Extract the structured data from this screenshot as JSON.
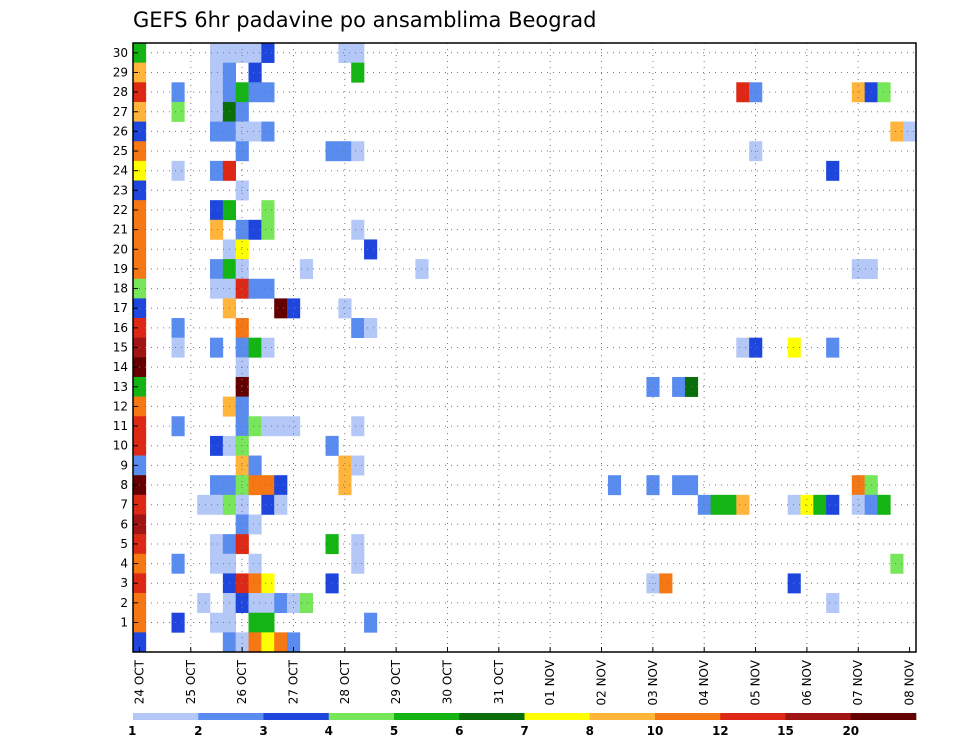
{
  "chart_data": {
    "type": "heatmap",
    "title": "GEFS 6hr padavine po ansamblima Beograd",
    "x_ticks": [
      "24 OCT",
      "25 OCT",
      "26 OCT",
      "27 OCT",
      "28 OCT",
      "29 OCT",
      "30 OCT",
      "31 OCT",
      "01 NOV",
      "02 NOV",
      "03 NOV",
      "04 NOV",
      "05 NOV",
      "06 NOV",
      "07 NOV",
      "08 NOV"
    ],
    "x_start": "2018-10-24T00:00",
    "step_hours": 6,
    "steps": 61,
    "y_ticks": [
      "1",
      "2",
      "3",
      "4",
      "5",
      "6",
      "7",
      "8",
      "9",
      "10",
      "11",
      "12",
      "13",
      "14",
      "15",
      "16",
      "17",
      "18",
      "19",
      "20",
      "21",
      "22",
      "23",
      "24",
      "25",
      "26",
      "27",
      "28",
      "29",
      "30"
    ],
    "grid": "dotted",
    "colorbar": {
      "labels": [
        "1",
        "2",
        "3",
        "4",
        "5",
        "6",
        "7",
        "8",
        "10",
        "12",
        "15",
        "20"
      ],
      "colors": [
        "#b4c8f8",
        "#5a8cf0",
        "#1e46dc",
        "#78e65a",
        "#14b414",
        "#0a6e0a",
        "#ffff00",
        "#ffb43c",
        "#f57814",
        "#dc2814",
        "#a01414",
        "#640000"
      ]
    },
    "cells": [
      [
        0,
        30,
        5
      ],
      [
        0,
        29,
        8
      ],
      [
        0,
        28,
        10
      ],
      [
        0,
        27,
        8
      ],
      [
        0,
        26,
        3
      ],
      [
        0,
        25,
        9
      ],
      [
        0,
        24,
        7
      ],
      [
        0,
        23,
        3
      ],
      [
        0,
        22,
        9
      ],
      [
        0,
        21,
        9
      ],
      [
        0,
        20,
        9
      ],
      [
        0,
        19,
        9
      ],
      [
        0,
        18,
        4
      ],
      [
        0,
        17,
        3
      ],
      [
        0,
        16,
        10
      ],
      [
        0,
        15,
        11
      ],
      [
        0,
        14,
        12
      ],
      [
        0,
        13,
        5
      ],
      [
        0,
        12,
        9
      ],
      [
        0,
        11,
        10
      ],
      [
        0,
        10,
        10
      ],
      [
        0,
        9,
        2
      ],
      [
        0,
        8,
        12
      ],
      [
        0,
        7,
        10
      ],
      [
        0,
        6,
        11
      ],
      [
        0,
        5,
        10
      ],
      [
        0,
        4,
        9
      ],
      [
        0,
        3,
        10
      ],
      [
        0,
        2,
        9
      ],
      [
        0,
        1,
        9
      ],
      [
        0,
        0,
        3
      ],
      [
        3,
        28,
        2
      ],
      [
        3,
        27,
        4
      ],
      [
        3,
        24,
        1
      ],
      [
        3,
        16,
        2
      ],
      [
        3,
        15,
        1
      ],
      [
        3,
        11,
        2
      ],
      [
        3,
        4,
        2
      ],
      [
        3,
        1,
        3
      ],
      [
        5,
        2,
        1
      ],
      [
        5,
        7,
        1
      ],
      [
        6,
        30,
        1
      ],
      [
        6,
        29,
        1
      ],
      [
        6,
        28,
        1
      ],
      [
        6,
        27,
        1
      ],
      [
        6,
        26,
        2
      ],
      [
        6,
        24,
        2
      ],
      [
        6,
        22,
        3
      ],
      [
        6,
        21,
        8
      ],
      [
        6,
        19,
        2
      ],
      [
        6,
        18,
        1
      ],
      [
        6,
        15,
        2
      ],
      [
        6,
        10,
        3
      ],
      [
        6,
        8,
        2
      ],
      [
        6,
        7,
        1
      ],
      [
        6,
        5,
        1
      ],
      [
        6,
        4,
        1
      ],
      [
        6,
        1,
        1
      ],
      [
        7,
        30,
        1
      ],
      [
        7,
        29,
        2
      ],
      [
        7,
        28,
        2
      ],
      [
        7,
        27,
        6
      ],
      [
        7,
        26,
        2
      ],
      [
        7,
        24,
        10
      ],
      [
        7,
        22,
        5
      ],
      [
        7,
        20,
        1
      ],
      [
        7,
        19,
        5
      ],
      [
        7,
        18,
        1
      ],
      [
        7,
        17,
        8
      ],
      [
        7,
        12,
        8
      ],
      [
        7,
        10,
        1
      ],
      [
        7,
        8,
        2
      ],
      [
        7,
        7,
        4
      ],
      [
        7,
        5,
        2
      ],
      [
        7,
        4,
        1
      ],
      [
        7,
        3,
        3
      ],
      [
        7,
        2,
        1
      ],
      [
        7,
        1,
        1
      ],
      [
        7,
        0,
        2
      ],
      [
        8,
        30,
        1
      ],
      [
        8,
        28,
        5
      ],
      [
        8,
        27,
        2
      ],
      [
        8,
        26,
        1
      ],
      [
        8,
        25,
        2
      ],
      [
        8,
        23,
        1
      ],
      [
        8,
        21,
        2
      ],
      [
        8,
        20,
        7
      ],
      [
        8,
        19,
        1
      ],
      [
        8,
        18,
        10
      ],
      [
        8,
        16,
        9
      ],
      [
        8,
        15,
        2
      ],
      [
        8,
        14,
        1
      ],
      [
        8,
        13,
        12
      ],
      [
        8,
        12,
        2
      ],
      [
        8,
        11,
        2
      ],
      [
        8,
        10,
        4
      ],
      [
        8,
        9,
        8
      ],
      [
        8,
        8,
        4
      ],
      [
        8,
        7,
        1
      ],
      [
        8,
        6,
        2
      ],
      [
        8,
        5,
        10
      ],
      [
        8,
        3,
        10
      ],
      [
        8,
        2,
        3
      ],
      [
        8,
        0,
        1
      ],
      [
        9,
        30,
        1
      ],
      [
        9,
        29,
        3
      ],
      [
        9,
        28,
        2
      ],
      [
        9,
        26,
        1
      ],
      [
        9,
        21,
        3
      ],
      [
        9,
        18,
        2
      ],
      [
        9,
        15,
        5
      ],
      [
        9,
        11,
        4
      ],
      [
        9,
        9,
        2
      ],
      [
        9,
        8,
        9
      ],
      [
        9,
        6,
        1
      ],
      [
        9,
        4,
        1
      ],
      [
        9,
        3,
        9
      ],
      [
        9,
        2,
        1
      ],
      [
        9,
        1,
        5
      ],
      [
        9,
        0,
        9
      ],
      [
        10,
        30,
        3
      ],
      [
        10,
        28,
        2
      ],
      [
        10,
        26,
        2
      ],
      [
        10,
        22,
        4
      ],
      [
        10,
        21,
        4
      ],
      [
        10,
        18,
        2
      ],
      [
        10,
        15,
        1
      ],
      [
        10,
        11,
        1
      ],
      [
        10,
        8,
        9
      ],
      [
        10,
        7,
        3
      ],
      [
        10,
        3,
        7
      ],
      [
        10,
        2,
        1
      ],
      [
        10,
        1,
        5
      ],
      [
        10,
        0,
        7
      ],
      [
        11,
        17,
        12
      ],
      [
        11,
        11,
        1
      ],
      [
        11,
        8,
        3
      ],
      [
        11,
        7,
        1
      ],
      [
        11,
        2,
        2
      ],
      [
        11,
        0,
        9
      ],
      [
        12,
        17,
        3
      ],
      [
        12,
        11,
        1
      ],
      [
        12,
        2,
        1
      ],
      [
        12,
        0,
        2
      ],
      [
        13,
        19,
        1
      ],
      [
        13,
        2,
        4
      ],
      [
        15,
        25,
        2
      ],
      [
        15,
        10,
        2
      ],
      [
        15,
        5,
        5
      ],
      [
        15,
        3,
        3
      ],
      [
        16,
        30,
        1
      ],
      [
        16,
        25,
        2
      ],
      [
        16,
        17,
        1
      ],
      [
        16,
        9,
        8
      ],
      [
        16,
        8,
        8
      ],
      [
        17,
        30,
        1
      ],
      [
        17,
        29,
        5
      ],
      [
        17,
        25,
        1
      ],
      [
        17,
        21,
        1
      ],
      [
        17,
        16,
        2
      ],
      [
        17,
        11,
        1
      ],
      [
        17,
        9,
        1
      ],
      [
        17,
        5,
        1
      ],
      [
        17,
        4,
        1
      ],
      [
        18,
        16,
        1
      ],
      [
        18,
        20,
        3
      ],
      [
        18,
        1,
        2
      ],
      [
        22,
        19,
        1
      ],
      [
        37,
        8,
        2
      ],
      [
        40,
        13,
        2
      ],
      [
        40,
        8,
        2
      ],
      [
        40,
        3,
        1
      ],
      [
        41,
        3,
        9
      ],
      [
        42,
        13,
        2
      ],
      [
        42,
        8,
        2
      ],
      [
        43,
        13,
        6
      ],
      [
        43,
        8,
        2
      ],
      [
        44,
        7,
        2
      ],
      [
        45,
        7,
        5
      ],
      [
        46,
        7,
        5
      ],
      [
        47,
        15,
        1
      ],
      [
        47,
        7,
        8
      ],
      [
        47,
        28,
        10
      ],
      [
        48,
        28,
        2
      ],
      [
        48,
        25,
        1
      ],
      [
        48,
        15,
        3
      ],
      [
        51,
        7,
        1
      ],
      [
        51,
        15,
        7
      ],
      [
        51,
        3,
        3
      ],
      [
        52,
        7,
        7
      ],
      [
        53,
        7,
        5
      ],
      [
        54,
        7,
        3
      ],
      [
        54,
        24,
        3
      ],
      [
        54,
        15,
        2
      ],
      [
        54,
        2,
        1
      ],
      [
        56,
        19,
        1
      ],
      [
        56,
        8,
        9
      ],
      [
        56,
        7,
        1
      ],
      [
        56,
        28,
        8
      ],
      [
        57,
        19,
        1
      ],
      [
        57,
        8,
        4
      ],
      [
        57,
        7,
        2
      ],
      [
        57,
        28,
        3
      ],
      [
        58,
        7,
        5
      ],
      [
        58,
        28,
        4
      ],
      [
        59,
        26,
        8
      ],
      [
        59,
        4,
        4
      ],
      [
        60,
        26,
        1
      ]
    ]
  }
}
